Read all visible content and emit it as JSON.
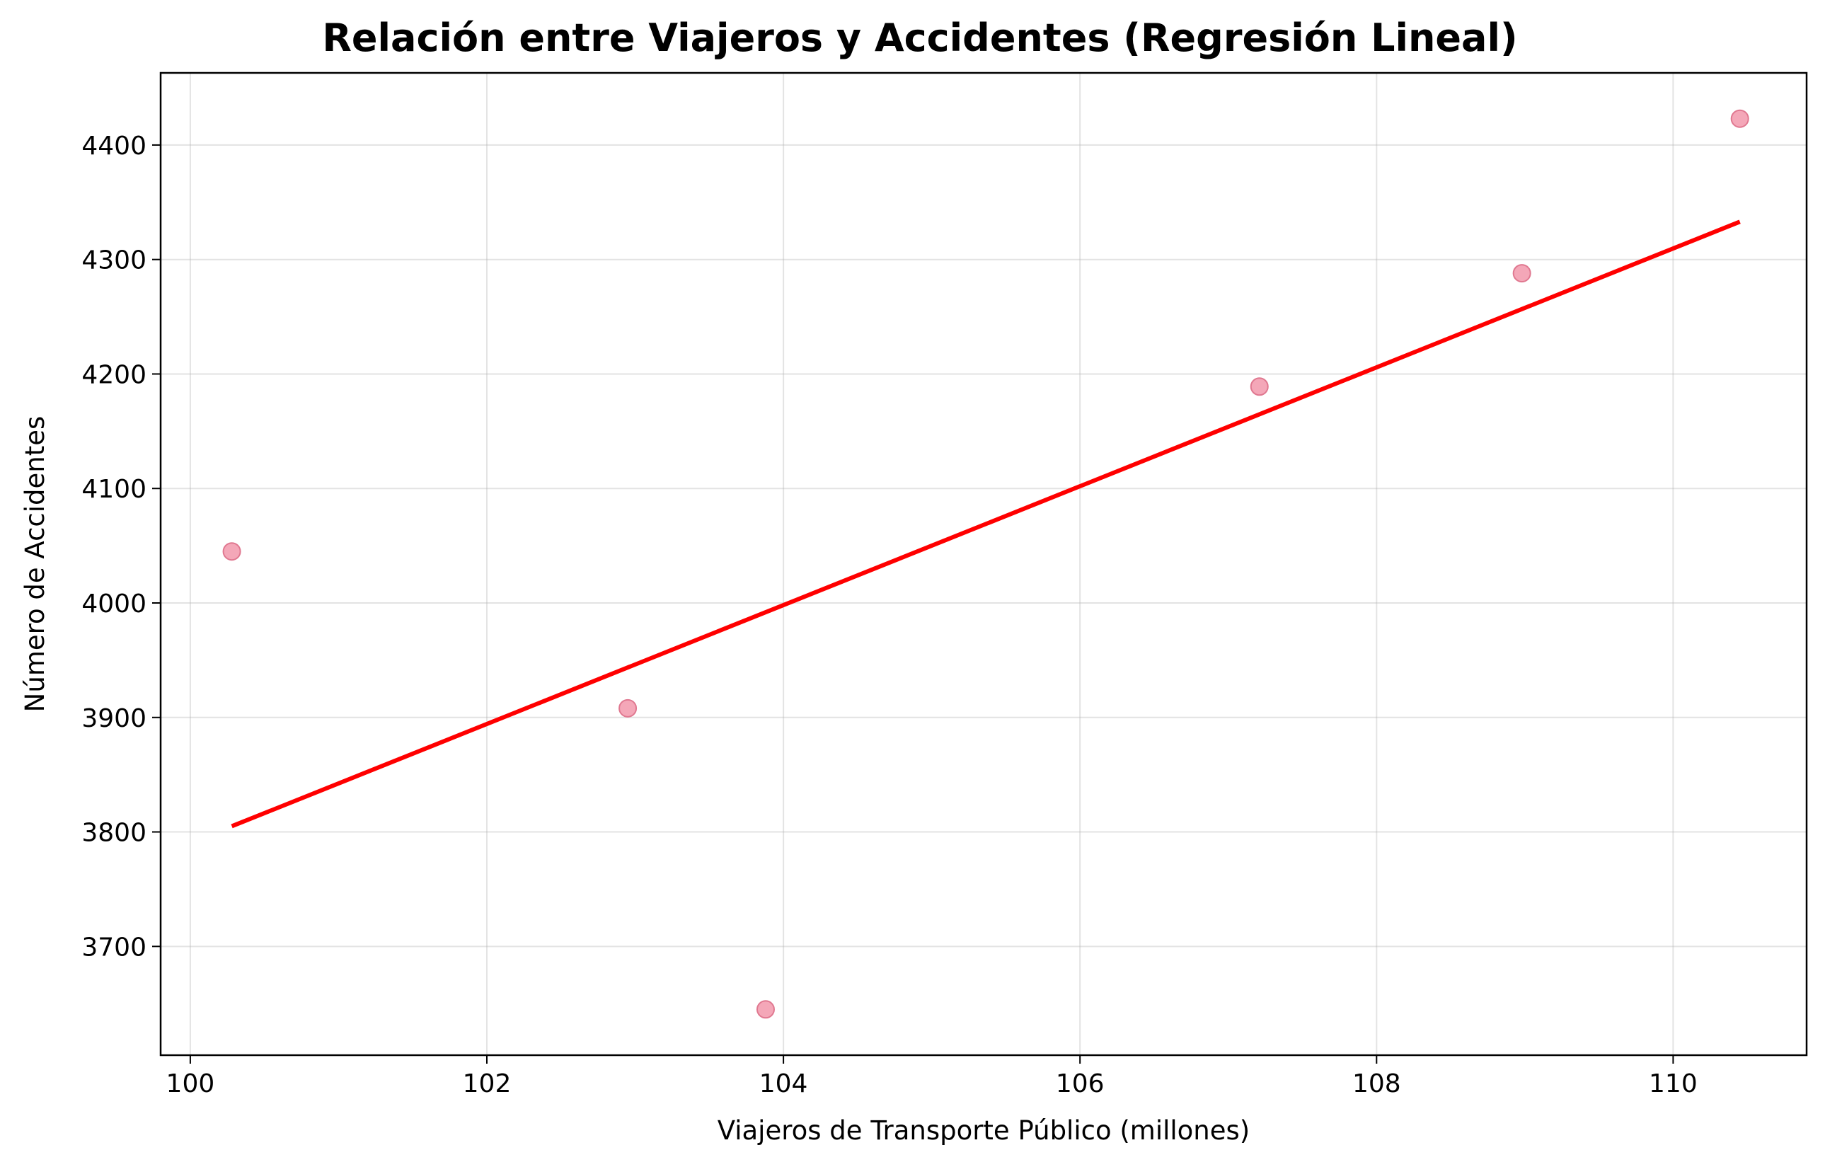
{
  "chart_data": {
    "type": "scatter",
    "title": "Relación entre Viajeros y Accidentes (Regresión Lineal)",
    "xlabel": "Viajeros de Transporte Público (millones)",
    "ylabel": "Número de Accidentes",
    "xlim": [
      99.8,
      110.9
    ],
    "ylim": [
      3605,
      4463
    ],
    "xticks": [
      100,
      102,
      104,
      106,
      108,
      110
    ],
    "yticks": [
      3700,
      3800,
      3900,
      4000,
      4100,
      4200,
      4300,
      4400
    ],
    "grid": true,
    "points": [
      {
        "x": 100.28,
        "y": 4045
      },
      {
        "x": 102.95,
        "y": 3908
      },
      {
        "x": 103.88,
        "y": 3645
      },
      {
        "x": 107.21,
        "y": 4189
      },
      {
        "x": 108.98,
        "y": 4288
      },
      {
        "x": 110.45,
        "y": 4423
      }
    ],
    "regression_line": {
      "x": [
        100.28,
        110.45
      ],
      "y": [
        3805,
        4333
      ]
    },
    "colors": {
      "points": "#f08aa0",
      "points_edge": "#e07890",
      "line": "#ff0000"
    }
  }
}
